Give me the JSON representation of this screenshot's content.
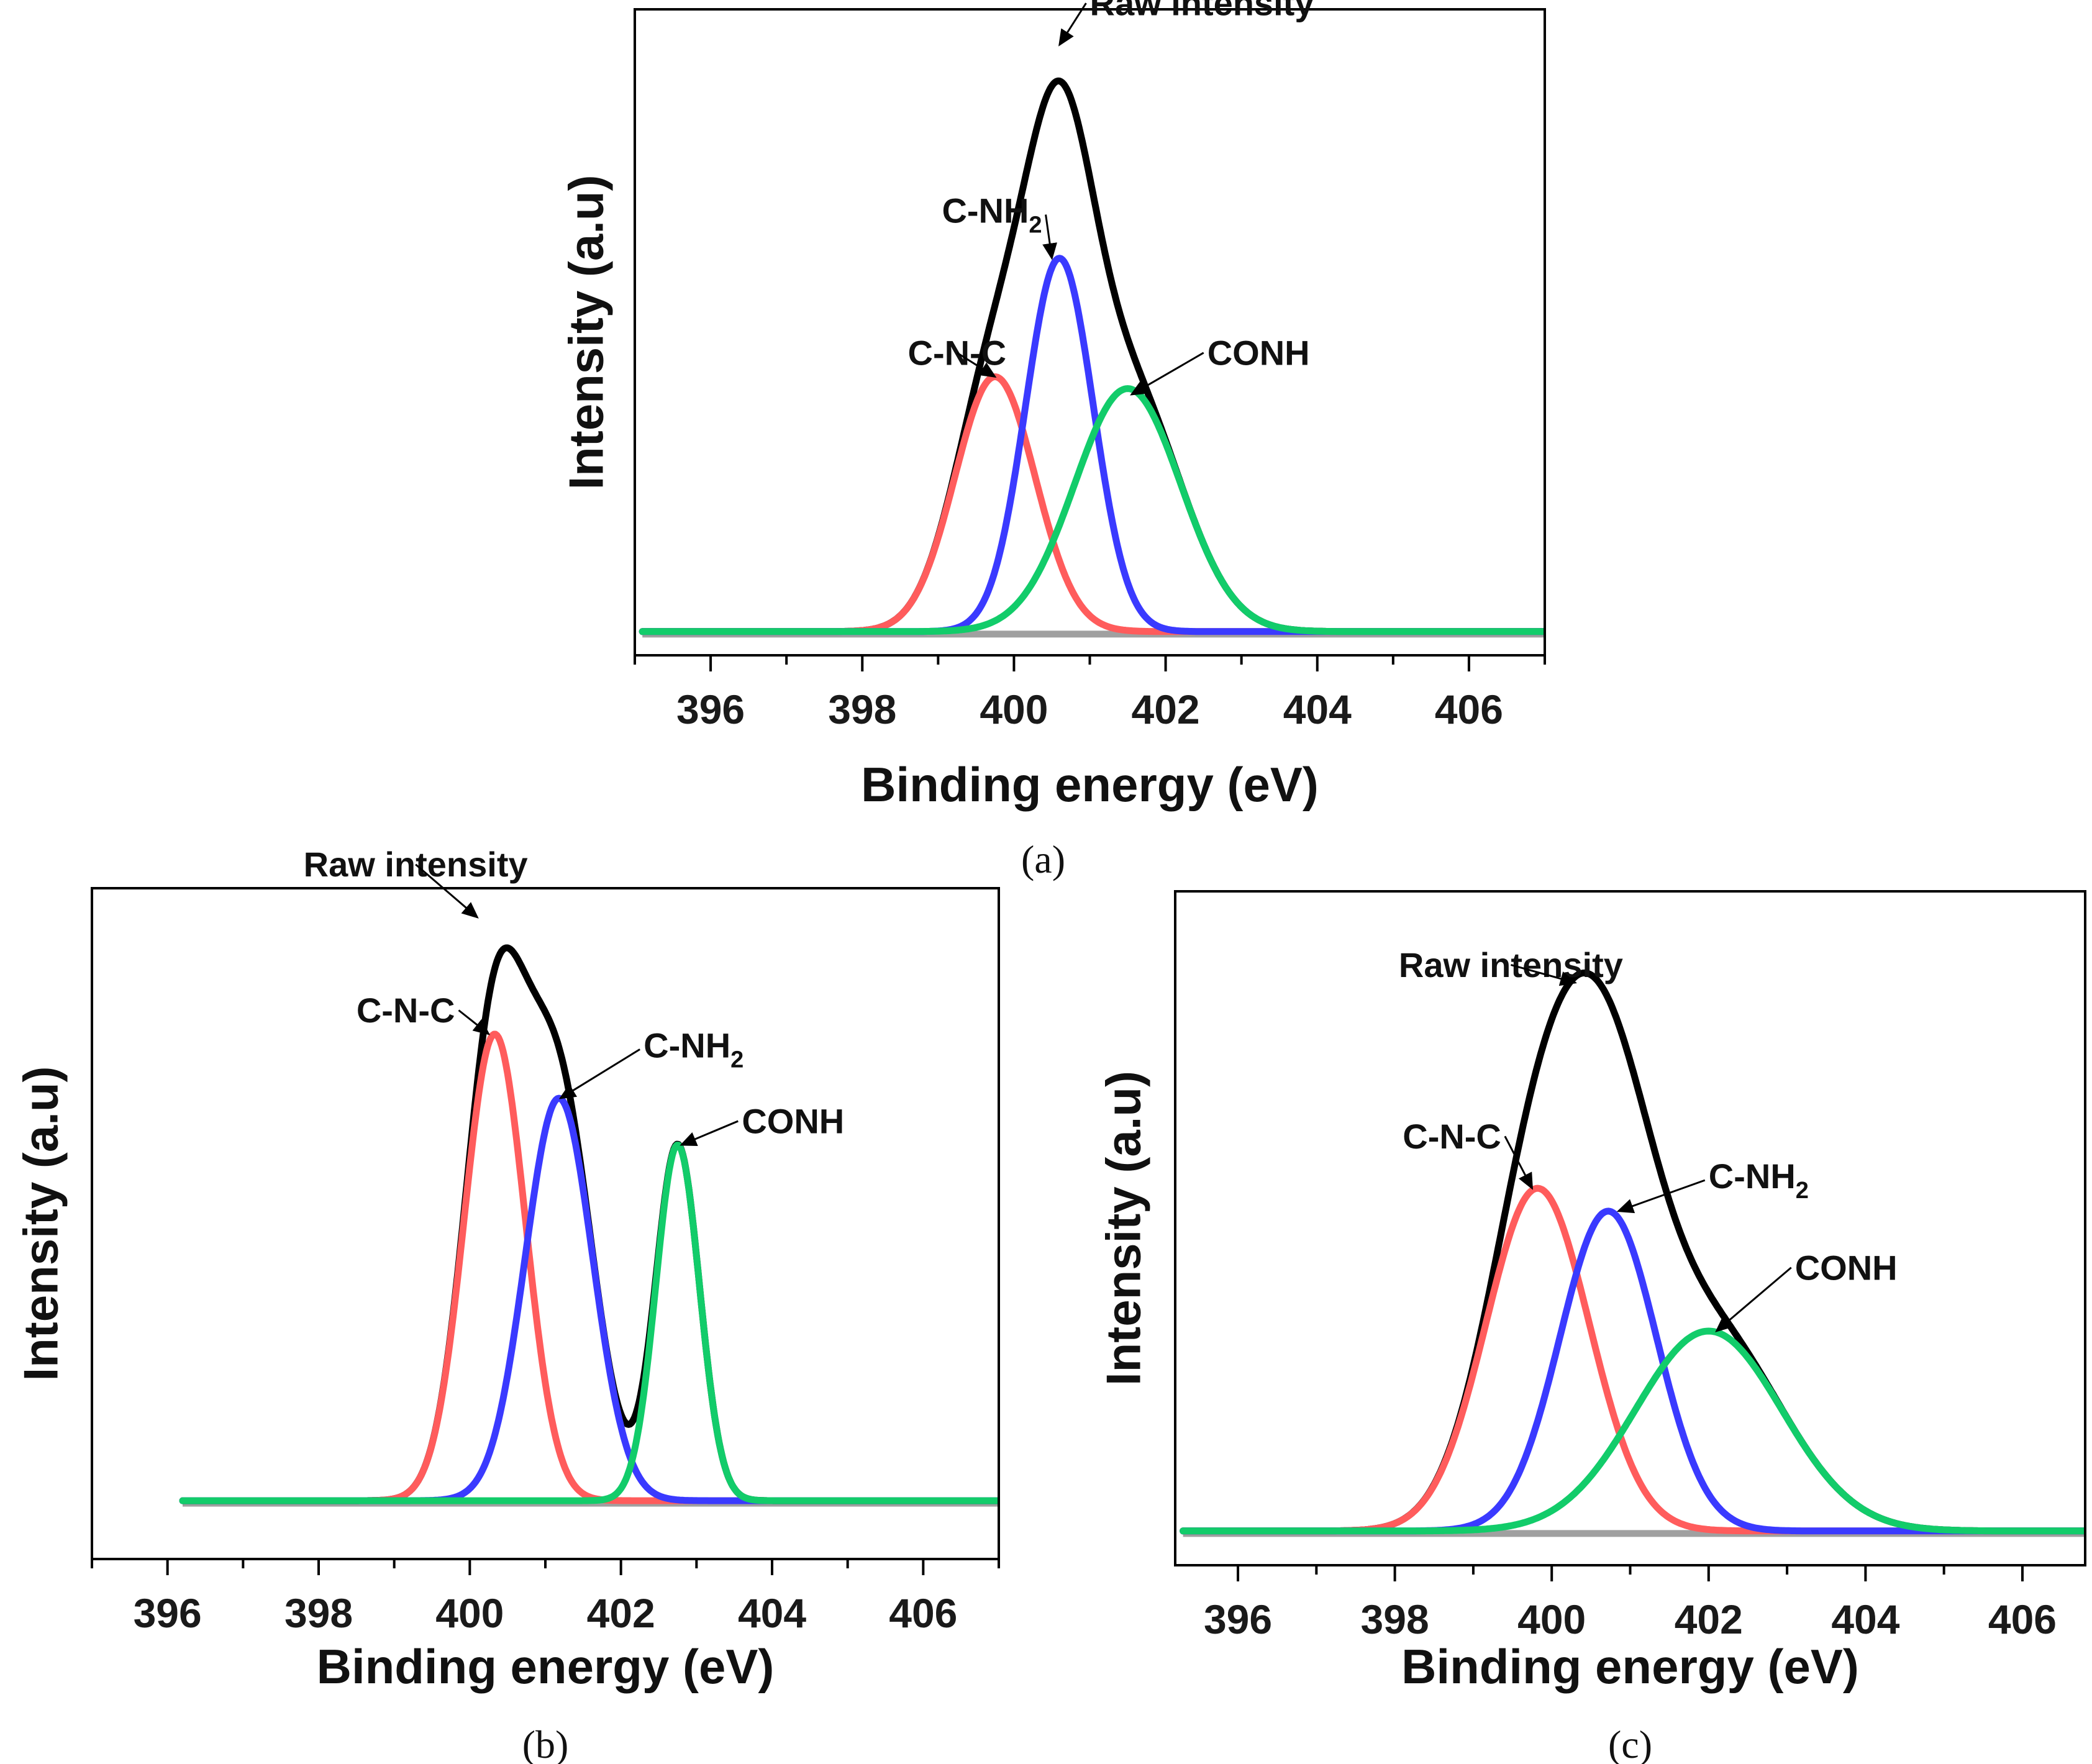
{
  "colors": {
    "raw": "#000000",
    "c_n_c": "#ff5c5c",
    "c_nh2": "#3a3aff",
    "conh": "#12cc6a",
    "baseline": "#a0a0a0",
    "axis": "#000000"
  },
  "chart_data": [
    {
      "type": "line",
      "panel_label": "(a)",
      "xlabel": "Binding energy (eV)",
      "ylabel": "Intensity (a.u)",
      "xlim": [
        395,
        407
      ],
      "ylim": [
        -0.04,
        1.05
      ],
      "xticks": [
        "396",
        "398",
        "400",
        "402",
        "404",
        "406"
      ],
      "xtick_values": [
        396,
        398,
        400,
        402,
        404,
        406
      ],
      "x_range": [
        395.1,
        407
      ],
      "baseline": 0,
      "components": [
        {
          "name": "C-N-C",
          "color_key": "c_n_c",
          "center": 399.75,
          "amplitude": 0.43,
          "width": 1.25
        },
        {
          "name": "C-NH2",
          "color_key": "c_nh2",
          "center": 400.6,
          "amplitude": 0.63,
          "width": 1.05
        },
        {
          "name": "CONH",
          "color_key": "conh",
          "center": 401.5,
          "amplitude": 0.41,
          "width": 1.65
        }
      ],
      "annotations": [
        {
          "label": "Raw intensity",
          "x": 401.0,
          "y": 1.04,
          "target_x": 400.6,
          "target_y": 0.99
        },
        {
          "label": "C-NH",
          "subscript": "2",
          "x": 399.05,
          "y": 0.69,
          "target_x": 400.5,
          "target_y": 0.63
        },
        {
          "label": "C-N-C",
          "x": 398.6,
          "y": 0.45,
          "target_x": 399.75,
          "target_y": 0.43
        },
        {
          "label": "CONH",
          "x": 402.55,
          "y": 0.45,
          "target_x": 401.55,
          "target_y": 0.4
        }
      ]
    },
    {
      "type": "line",
      "panel_label": "(b)",
      "xlabel": "Binding energy (eV)",
      "ylabel": "Intensity (a.u)",
      "xlim": [
        395,
        407
      ],
      "ylim": [
        -0.1,
        1.05
      ],
      "xticks": [
        "396",
        "398",
        "400",
        "402",
        "404",
        "406"
      ],
      "xtick_values": [
        396,
        398,
        400,
        402,
        404,
        406
      ],
      "x_range": [
        396.2,
        407
      ],
      "baseline": 0,
      "components": [
        {
          "name": "C-N-C",
          "color_key": "c_n_c",
          "center": 400.33,
          "amplitude": 0.8,
          "width": 0.95
        },
        {
          "name": "C-NH2",
          "color_key": "c_nh2",
          "center": 401.18,
          "amplitude": 0.69,
          "width": 1.05
        },
        {
          "name": "CONH",
          "color_key": "conh",
          "center": 402.75,
          "amplitude": 0.61,
          "width": 0.68
        }
      ],
      "annotations": [
        {
          "label": "Raw intensity",
          "x": 397.8,
          "y": 1.07,
          "target_x": 400.1,
          "target_y": 1.0
        },
        {
          "label": "C-N-C",
          "x": 398.5,
          "y": 0.82,
          "target_x": 400.25,
          "target_y": 0.8
        },
        {
          "label": "C-NH",
          "subscript": "2",
          "x": 402.3,
          "y": 0.76,
          "target_x": 401.2,
          "target_y": 0.69
        },
        {
          "label": "CONH",
          "x": 403.6,
          "y": 0.63,
          "target_x": 402.8,
          "target_y": 0.61
        }
      ]
    },
    {
      "type": "line",
      "panel_label": "(c)",
      "xlabel": "Binding energy (eV)",
      "ylabel": "Intensity (a.u)",
      "xlim": [
        395.2,
        406.8
      ],
      "ylim": [
        -0.06,
        1.12
      ],
      "xticks": [
        "396",
        "398",
        "400",
        "402",
        "404",
        "406"
      ],
      "xtick_values": [
        396,
        398,
        400,
        402,
        404,
        406
      ],
      "x_range": [
        395.3,
        406.8
      ],
      "baseline": 0,
      "components": [
        {
          "name": "C-N-C",
          "color_key": "c_n_c",
          "center": 399.82,
          "amplitude": 0.6,
          "width": 1.55
        },
        {
          "name": "C-NH2",
          "color_key": "c_nh2",
          "center": 400.72,
          "amplitude": 0.56,
          "width": 1.45
        },
        {
          "name": "CONH",
          "color_key": "conh",
          "center": 402.0,
          "amplitude": 0.35,
          "width": 2.2
        }
      ],
      "annotations": [
        {
          "label": "Raw intensity",
          "x": 398.05,
          "y": 0.97,
          "target_x": 400.3,
          "target_y": 0.96
        },
        {
          "label": "C-N-C",
          "x": 398.1,
          "y": 0.67,
          "target_x": 399.75,
          "target_y": 0.6
        },
        {
          "label": "C-NH",
          "subscript": "2",
          "x": 402.0,
          "y": 0.6,
          "target_x": 400.85,
          "target_y": 0.56
        },
        {
          "label": "CONH",
          "x": 403.1,
          "y": 0.44,
          "target_x": 402.1,
          "target_y": 0.35
        }
      ]
    }
  ]
}
